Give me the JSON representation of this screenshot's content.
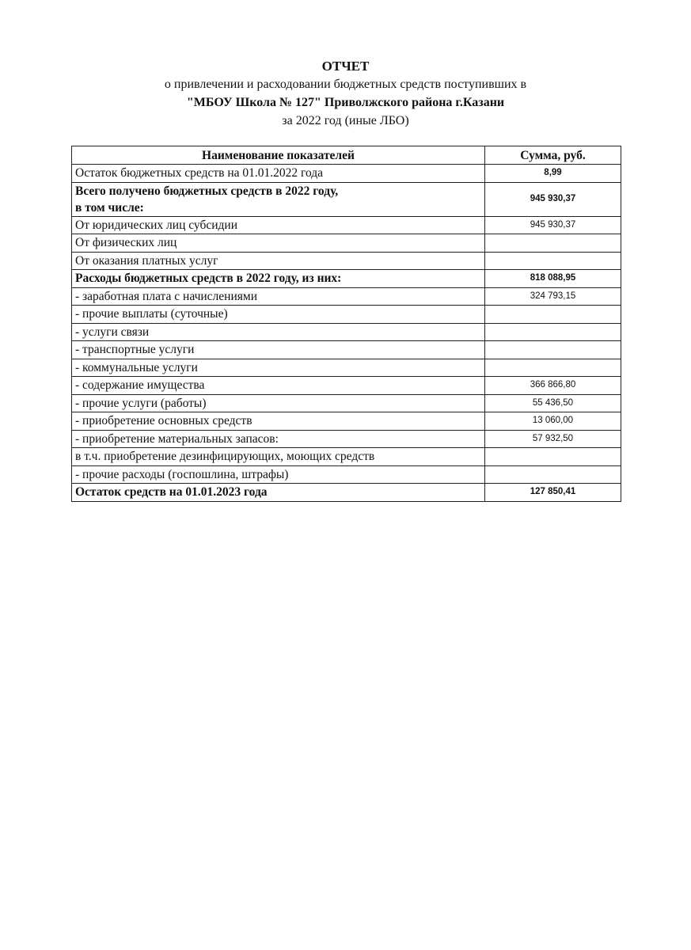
{
  "document": {
    "title": "ОТЧЕТ",
    "subtitle_line1": "о привлечении и расходовании бюджетных средств поступивших в",
    "subtitle_line2": "\"МБОУ Школа № 127\" Приволжского района г.Казани",
    "subtitle_line3": "за 2022 год (иные ЛБО)"
  },
  "table": {
    "headers": [
      "Наименование показателей",
      "Сумма, руб."
    ],
    "rows": [
      {
        "name": "Остаток бюджетных средств на 01.01.2022 года",
        "sum": "8,99",
        "bold": false
      },
      {
        "name": "Всего получено бюджетных средств в 2022 году,",
        "name2": "в том числе:",
        "sum": "945 930,37",
        "bold": true
      },
      {
        "name": "От юридических лиц  субсидии",
        "sum": "945 930,37",
        "bold": false
      },
      {
        "name": "От физических лиц",
        "sum": "",
        "bold": false
      },
      {
        "name": "От оказания платных услуг",
        "sum": "",
        "bold": false
      },
      {
        "name": "Расходы бюджетных средств в 2022 году, из них:",
        "sum": "818 088,95",
        "bold": true
      },
      {
        "name": "- заработная плата с начислениями",
        "sum": "324 793,15",
        "bold": false
      },
      {
        "name": "- прочие выплаты (суточные)",
        "sum": "",
        "bold": false
      },
      {
        "name": "- услуги связи",
        "sum": "",
        "bold": false
      },
      {
        "name": "- транспортные услуги",
        "sum": "",
        "bold": false
      },
      {
        "name": "- коммунальные услуги",
        "sum": "",
        "bold": false
      },
      {
        "name": "- содержание имущества",
        "sum": "366 866,80",
        "bold": false
      },
      {
        "name": "- прочие услуги (работы)",
        "sum": "55 436,50",
        "bold": false
      },
      {
        "name": "- приобретение основных средств",
        "sum": "13 060,00",
        "bold": false
      },
      {
        "name": "- приобретение материальных запасов:",
        "sum": "57 932,50",
        "bold": false
      },
      {
        "name": "в т.ч. приобретение дезинфицирующих, моющих средств",
        "sum": "",
        "bold": false
      },
      {
        "name": "- прочие расходы (госпошлина, штрафы)",
        "sum": "",
        "bold": false
      },
      {
        "name": "Остаток средств на 01.01.2023 года",
        "sum": "127 850,41",
        "bold": true
      }
    ]
  }
}
